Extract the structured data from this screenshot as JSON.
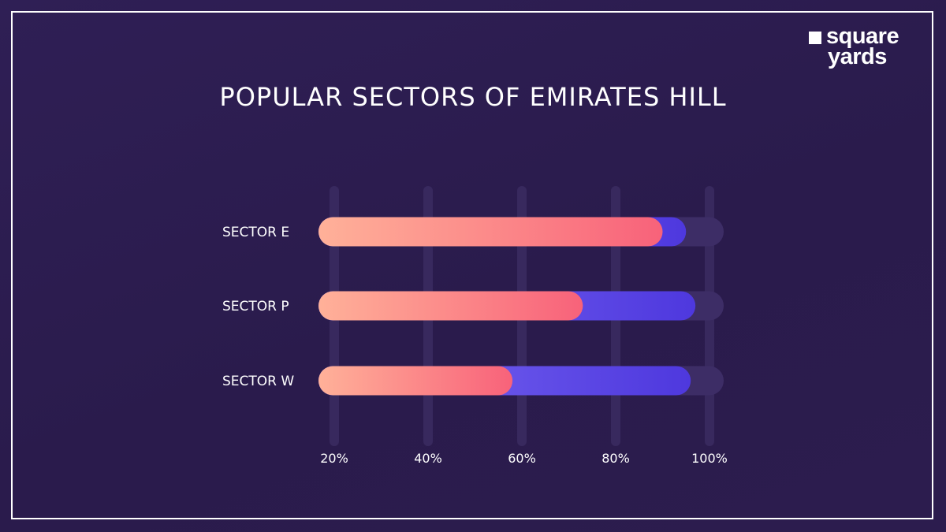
{
  "brand": {
    "line1": "square",
    "line2": "yards"
  },
  "chart_data": {
    "type": "bar",
    "orientation": "horizontal",
    "title": "POPULAR SECTORS OF EMIRATES HILL",
    "categories": [
      "SECTOR E",
      "SECTOR P",
      "SECTOR W"
    ],
    "x_ticks": [
      "20%",
      "40%",
      "60%",
      "80%",
      "100%"
    ],
    "xlim": [
      20,
      100
    ],
    "series": [
      {
        "values": [
          95,
          97,
          96
        ],
        "color": "#5a45e0"
      },
      {
        "values": [
          90,
          73,
          58
        ],
        "color": "#f96a7c"
      }
    ],
    "grid": true,
    "colors": {
      "track": "#3b2b62",
      "gradient_start": "#ffb199",
      "gradient_end": "#f8627a",
      "back_start": "#7d6cf4",
      "back_end": "#4e38de"
    }
  }
}
